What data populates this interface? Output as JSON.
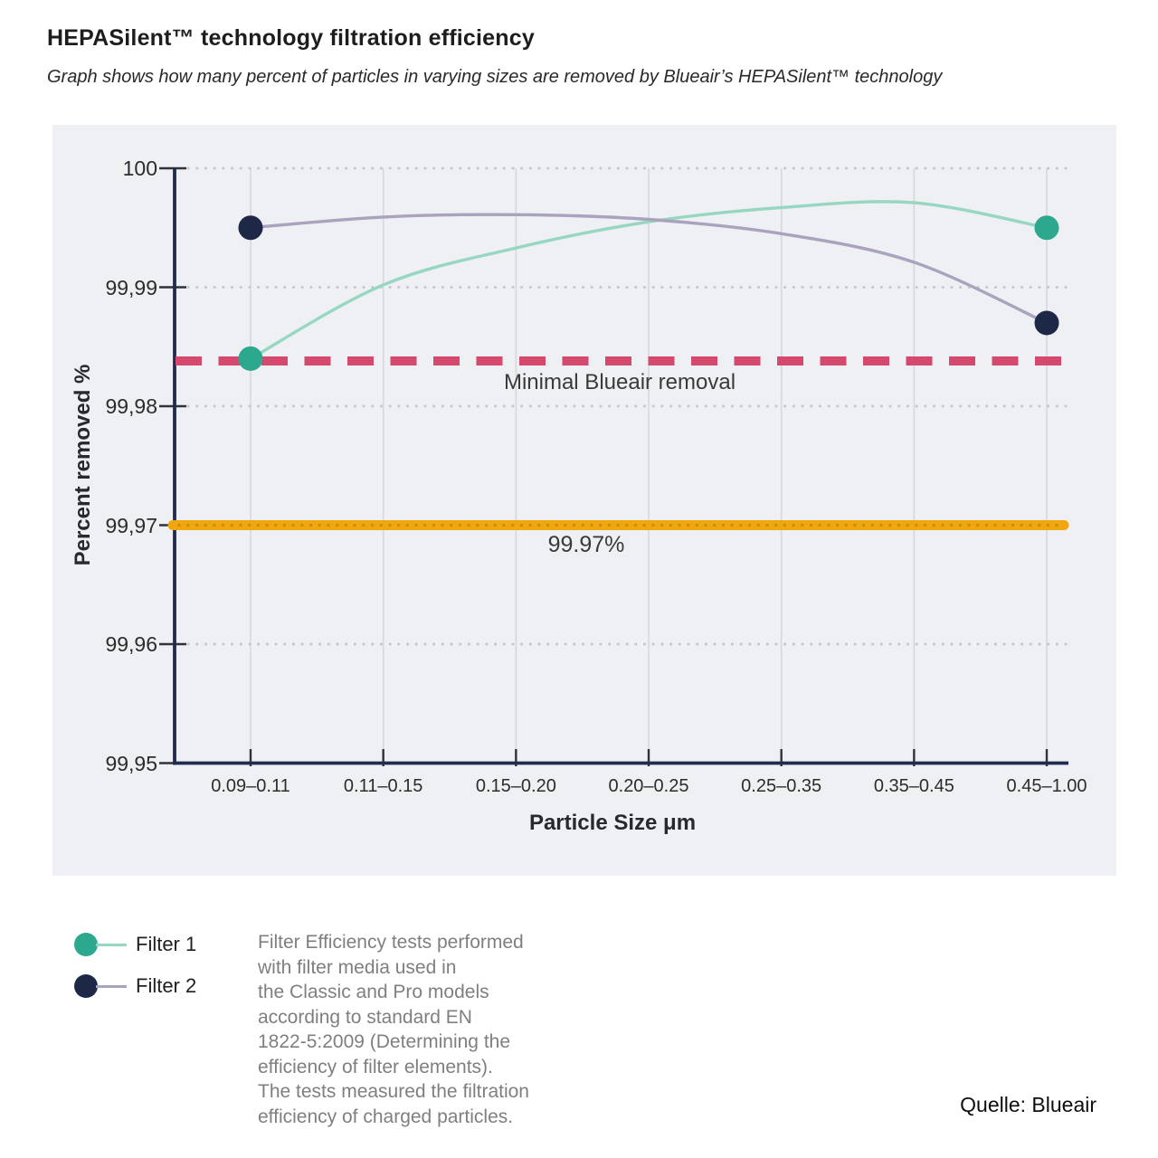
{
  "header": {
    "title": "HEPASilent™ technology filtration efficiency",
    "subtitle": "Graph shows how many percent of particles in varying sizes are removed by Blueair’s HEPASilent™ technology"
  },
  "chart_data": {
    "type": "line",
    "title": "HEPASilent™ technology filtration efficiency",
    "xlabel": "Particle Size μm",
    "ylabel": "Percent removed %",
    "categories": [
      "0.09–0.11",
      "0.11–0.15",
      "0.15–0.20",
      "0.20–0.25",
      "0.25–0.35",
      "0.35–0.45",
      "0.45–1.00"
    ],
    "ylim": [
      99.95,
      100
    ],
    "yticks": [
      {
        "value": 100,
        "label": "100"
      },
      {
        "value": 99.99,
        "label": "99,99"
      },
      {
        "value": 99.98,
        "label": "99,98"
      },
      {
        "value": 99.97,
        "label": "99,97"
      },
      {
        "value": 99.96,
        "label": "99,96"
      },
      {
        "value": 99.95,
        "label": "99,95"
      }
    ],
    "grid": {
      "vertical": "solid",
      "horizontal": "dotted"
    },
    "legend_position": "bottom-left",
    "axis_color": "#1f2c50",
    "series": [
      {
        "name": "Filter 1",
        "marker_color": "#2ba88e",
        "line_color": "#97d7c2",
        "values": [
          99.984,
          99.9902,
          99.9933,
          99.9955,
          99.9967,
          99.9971,
          99.995
        ],
        "markers_at": [
          "first",
          "last"
        ],
        "endpoint_values": [
          99.984,
          99.995
        ]
      },
      {
        "name": "Filter 2",
        "marker_color": "#1d2847",
        "line_color": "#a9a3bf",
        "values": [
          99.995,
          99.9959,
          99.9961,
          99.9957,
          99.9945,
          99.9921,
          99.987
        ],
        "markers_at": [
          "first",
          "last"
        ],
        "endpoint_values": [
          99.995,
          99.987
        ]
      }
    ],
    "reference_lines": [
      {
        "label": "Minimal Blueair removal",
        "value": 99.9838,
        "style": "dashed",
        "color": "#d4496d"
      },
      {
        "label": "99.97%",
        "value": 99.97,
        "style": "dotted-band",
        "color": "#f0a60e"
      }
    ]
  },
  "notes": {
    "text": "Filter Efficiency tests performed\nwith filter media used in\nthe Classic and Pro models\naccording to standard EN\n1822-5:2009 (Determining the\nefficiency of filter elements).\nThe tests measured the filtration\nefficiency of charged particles."
  },
  "source": {
    "text": "Quelle: Blueair"
  }
}
